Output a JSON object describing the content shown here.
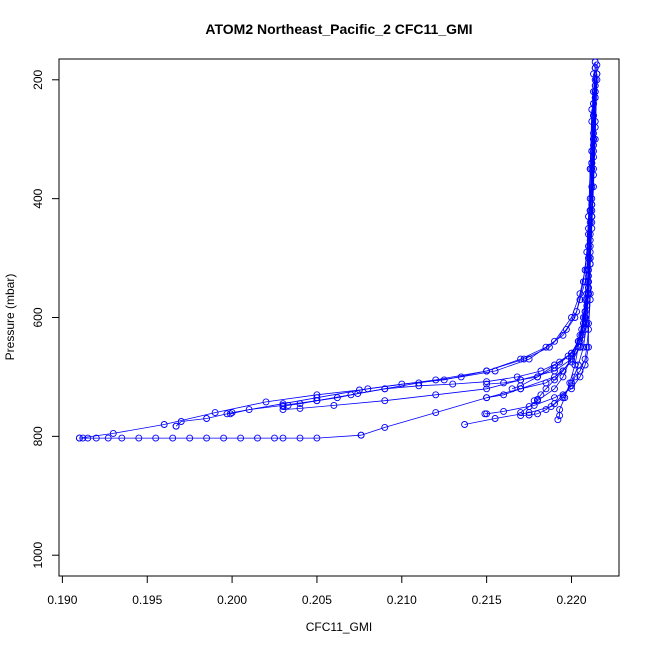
{
  "chart_data": {
    "type": "line",
    "title": "ATOM2 Northeast_Pacific_2 CFC11_GMI",
    "xlabel": "CFC11_GMI",
    "ylabel": "Pressure (mbar)",
    "xlim": [
      0.1898,
      0.2228
    ],
    "ylim": [
      1035,
      165
    ],
    "y_inverted": true,
    "x_ticks": [
      0.19,
      0.195,
      0.2,
      0.205,
      0.21,
      0.215,
      0.22
    ],
    "x_tick_labels": [
      "0.190",
      "0.195",
      "0.200",
      "0.205",
      "0.210",
      "0.215",
      "0.220"
    ],
    "y_ticks": [
      200,
      400,
      600,
      800,
      1000
    ],
    "y_tick_labels": [
      "200",
      "400",
      "600",
      "800",
      "1000"
    ],
    "marker": "open-circle",
    "series_color": "#0000ff",
    "grid": false,
    "series": [
      {
        "x": [
          0.2214,
          0.2214,
          0.2213,
          0.2213,
          0.2212,
          0.2212,
          0.2211,
          0.2211,
          0.221,
          0.2208,
          0.2205,
          0.2202,
          0.2195,
          0.2185,
          0.217,
          0.215,
          0.212,
          0.208,
          0.205,
          0.203,
          0.2,
          0.1985,
          0.197,
          0.1967,
          0.1967
        ],
        "y": [
          170,
          220,
          260,
          300,
          340,
          380,
          420,
          460,
          500,
          540,
          570,
          600,
          630,
          650,
          670,
          690,
          705,
          720,
          735,
          745,
          760,
          770,
          775,
          783,
          783
        ]
      },
      {
        "x": [
          0.2214,
          0.2213,
          0.2212,
          0.2211,
          0.221,
          0.2208,
          0.2205,
          0.22,
          0.219,
          0.2175,
          0.2155,
          0.2135,
          0.211,
          0.209,
          0.207,
          0.205,
          0.203,
          0.201,
          0.1999,
          0.1997
        ],
        "y": [
          180,
          240,
          320,
          400,
          460,
          520,
          560,
          600,
          640,
          670,
          690,
          700,
          710,
          720,
          730,
          740,
          748,
          755,
          762,
          762
        ]
      },
      {
        "x": [
          0.2215,
          0.2214,
          0.2213,
          0.2212,
          0.2212,
          0.2211,
          0.221,
          0.2209,
          0.2207,
          0.2204,
          0.22,
          0.2193,
          0.2182,
          0.2168,
          0.215,
          0.213,
          0.211,
          0.209,
          0.2074,
          0.2062,
          0.205,
          0.204,
          0.2033,
          0.203
        ],
        "y": [
          175,
          230,
          290,
          350,
          410,
          470,
          530,
          570,
          610,
          640,
          660,
          675,
          690,
          700,
          708,
          712,
          715,
          720,
          728,
          735,
          740,
          745,
          748,
          750
        ]
      },
      {
        "x": [
          0.2213,
          0.2212,
          0.2211,
          0.221,
          0.2209,
          0.2207,
          0.2203,
          0.2197,
          0.2187,
          0.2172,
          0.215,
          0.2125,
          0.21,
          0.2075,
          0.205,
          0.202,
          0.199,
          0.196,
          0.193,
          0.191
        ],
        "y": [
          190,
          270,
          350,
          430,
          490,
          540,
          590,
          620,
          650,
          670,
          690,
          705,
          712,
          722,
          730,
          742,
          760,
          780,
          795,
          803
        ]
      },
      {
        "x": [
          0.2214,
          0.2213,
          0.2212,
          0.2211,
          0.221,
          0.2208,
          0.2206,
          0.22,
          0.219,
          0.218,
          0.217,
          0.2165
        ],
        "y": [
          200,
          300,
          400,
          480,
          540,
          590,
          630,
          660,
          680,
          700,
          715,
          720
        ]
      },
      {
        "x": [
          0.2215,
          0.2214,
          0.2213,
          0.2212,
          0.2211,
          0.221,
          0.2208,
          0.2205,
          0.2198,
          0.219,
          0.218,
          0.217,
          0.216,
          0.215
        ],
        "y": [
          190,
          280,
          360,
          440,
          500,
          550,
          600,
          640,
          665,
          685,
          700,
          705,
          710,
          712
        ]
      },
      {
        "x": [
          0.2215,
          0.2214,
          0.2213,
          0.2212,
          0.2211,
          0.221,
          0.2208,
          0.2205,
          0.2195,
          0.2185,
          0.217,
          0.216,
          0.215
        ],
        "y": [
          200,
          300,
          380,
          450,
          510,
          560,
          610,
          650,
          690,
          710,
          720,
          730,
          735
        ]
      },
      {
        "x": [
          0.2213,
          0.2212,
          0.2211,
          0.221,
          0.2209,
          0.2207,
          0.2204,
          0.22,
          0.2195,
          0.219,
          0.2185,
          0.2182,
          0.218,
          0.2178
        ],
        "y": [
          220,
          320,
          420,
          500,
          560,
          600,
          640,
          670,
          690,
          705,
          720,
          730,
          738,
          740
        ]
      },
      {
        "x": [
          0.2214,
          0.2213,
          0.2212,
          0.2211,
          0.221,
          0.2208,
          0.2205,
          0.22,
          0.219,
          0.217,
          0.215,
          0.212,
          0.209,
          0.206,
          0.204,
          0.203
        ],
        "y": [
          210,
          310,
          410,
          490,
          550,
          600,
          640,
          670,
          690,
          705,
          720,
          730,
          740,
          748,
          753,
          755
        ]
      },
      {
        "x": [
          0.2214,
          0.2213,
          0.2212,
          0.2211,
          0.221,
          0.221,
          0.2208,
          0.2205,
          0.22,
          0.2195,
          0.219,
          0.218,
          0.2175,
          0.217
        ],
        "y": [
          180,
          260,
          340,
          420,
          480,
          540,
          590,
          630,
          665,
          700,
          720,
          740,
          750,
          760
        ]
      },
      {
        "x": [
          0.2215,
          0.2214,
          0.2213,
          0.2212,
          0.2211,
          0.2211,
          0.221,
          0.221,
          0.2208,
          0.2205,
          0.22,
          0.219,
          0.2178,
          0.216,
          0.215,
          0.2149
        ],
        "y": [
          190,
          270,
          350,
          430,
          500,
          560,
          610,
          650,
          680,
          700,
          720,
          735,
          748,
          758,
          762,
          762
        ]
      },
      {
        "x": [
          0.2214,
          0.2213,
          0.2212,
          0.2211,
          0.2211,
          0.221,
          0.2209,
          0.2208,
          0.2205,
          0.2202,
          0.22,
          0.2195,
          0.219,
          0.2185,
          0.218,
          0.2175,
          0.217
        ],
        "y": [
          230,
          330,
          430,
          510,
          570,
          620,
          650,
          670,
          690,
          700,
          715,
          730,
          745,
          755,
          762,
          764,
          765
        ]
      },
      {
        "x": [
          0.2212,
          0.2211,
          0.221,
          0.2209,
          0.2208,
          0.2206,
          0.2204,
          0.2202,
          0.2199,
          0.2196,
          0.2193,
          0.2193,
          0.2192
        ],
        "y": [
          250,
          350,
          450,
          520,
          570,
          620,
          650,
          680,
          710,
          735,
          755,
          765,
          772
        ]
      },
      {
        "x": [
          0.2214,
          0.2213,
          0.2212,
          0.2211,
          0.221,
          0.2209,
          0.2207,
          0.2204,
          0.22,
          0.2195,
          0.2188,
          0.2175,
          0.2155,
          0.2137
        ],
        "y": [
          220,
          320,
          420,
          500,
          560,
          610,
          650,
          680,
          710,
          735,
          750,
          760,
          770,
          780
        ]
      },
      {
        "x": [
          0.2213,
          0.2212,
          0.2211,
          0.221,
          0.2209,
          0.2208,
          0.2205,
          0.22,
          0.219,
          0.217,
          0.215,
          0.212,
          0.209,
          0.2076
        ],
        "y": [
          240,
          340,
          440,
          520,
          580,
          620,
          650,
          675,
          700,
          720,
          735,
          760,
          785,
          798
        ]
      },
      {
        "x": [
          0.2076,
          0.205,
          0.204,
          0.203,
          0.2025,
          0.2015,
          0.2005,
          0.1995,
          0.1985,
          0.1975,
          0.1965,
          0.1955,
          0.1945,
          0.1935,
          0.1927,
          0.192,
          0.1915,
          0.1912,
          0.191
        ],
        "y": [
          798,
          803,
          803,
          803,
          803,
          803,
          803,
          803,
          803,
          803,
          803,
          803,
          803,
          803,
          803,
          803,
          803,
          803,
          803
        ]
      }
    ]
  }
}
